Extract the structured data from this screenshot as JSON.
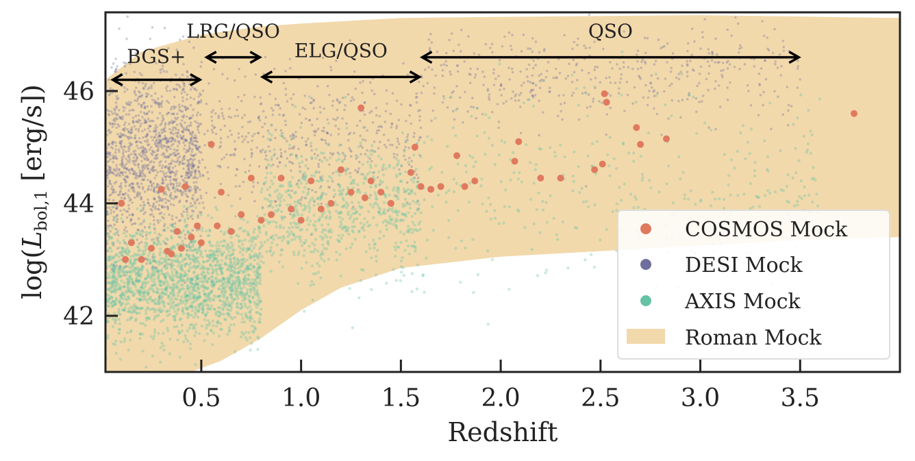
{
  "chart_data": {
    "type": "scatter",
    "xlabel": "Redshift",
    "ylabel": "log(L_bol,1 [erg/s])",
    "ylabel_main": "log(",
    "ylabel_L": "L",
    "ylabel_sub": "bol,1",
    "ylabel_tail": " [erg/s])",
    "xlim": [
      0.02,
      4.0
    ],
    "ylim": [
      41.0,
      47.4
    ],
    "xticks": [
      0.5,
      1.0,
      1.5,
      2.0,
      2.5,
      3.0,
      3.5
    ],
    "xtick_labels": [
      "0.5",
      "1.0",
      "1.5",
      "2.0",
      "2.5",
      "3.0",
      "3.5"
    ],
    "yticks": [
      42,
      44,
      46
    ],
    "ytick_labels": [
      "42",
      "44",
      "46"
    ],
    "grid": false,
    "legend": {
      "position": "lower-right",
      "entries": [
        {
          "label": "COSMOS Mock",
          "color": "#e07a5f",
          "marker": "circle"
        },
        {
          "label": "DESI Mock",
          "color": "#6f6f9e",
          "marker": "circle"
        },
        {
          "label": "AXIS Mock",
          "color": "#66c2a5",
          "marker": "circle"
        },
        {
          "label": "Roman Mock",
          "color": "#f2d9ab",
          "marker": "patch"
        }
      ]
    },
    "survey_ranges": [
      {
        "label": "BGS+",
        "x0": 0.05,
        "x1": 0.5,
        "y": 46.2,
        "label_y": 46.5
      },
      {
        "label": "LRG/QSO",
        "x0": 0.52,
        "x1": 0.8,
        "y": 46.6,
        "label_y": 46.95
      },
      {
        "label": "ELG/QSO",
        "x0": 0.8,
        "x1": 1.6,
        "y": 46.25,
        "label_y": 46.6
      },
      {
        "label": "QSO",
        "x0": 1.6,
        "x1": 3.5,
        "y": 46.6,
        "label_y": 46.95
      }
    ],
    "series": [
      {
        "name": "Roman Mock",
        "kind": "region",
        "color": "#f2d9ab",
        "upper": [
          [
            0.02,
            46.2
          ],
          [
            0.2,
            46.7
          ],
          [
            0.5,
            47.0
          ],
          [
            0.8,
            47.15
          ],
          [
            1.0,
            47.2
          ],
          [
            1.5,
            47.3
          ],
          [
            2.0,
            47.32
          ],
          [
            3.0,
            47.35
          ],
          [
            4.0,
            47.3
          ]
        ],
        "lower": [
          [
            0.02,
            41.0
          ],
          [
            0.45,
            41.0
          ],
          [
            0.6,
            41.2
          ],
          [
            0.8,
            41.6
          ],
          [
            1.0,
            42.1
          ],
          [
            1.2,
            42.5
          ],
          [
            1.5,
            42.85
          ],
          [
            2.0,
            43.05
          ],
          [
            2.5,
            43.15
          ],
          [
            3.0,
            43.25
          ],
          [
            3.5,
            43.35
          ],
          [
            4.0,
            43.4
          ]
        ]
      },
      {
        "name": "DESI Mock",
        "color": "#6f6f9e",
        "population_centers": [
          {
            "x_range": [
              0.02,
              0.5
            ],
            "y_mean": 44.8,
            "y_spread": 0.8,
            "n": 1400
          },
          {
            "x_range": [
              0.5,
              1.6
            ],
            "y_mean": 45.2,
            "y_spread": 0.6,
            "n": 500
          },
          {
            "x_range": [
              1.6,
              3.5
            ],
            "y_mean": 46.3,
            "y_spread": 0.45,
            "n": 450
          }
        ]
      },
      {
        "name": "AXIS Mock",
        "color": "#66c2a5",
        "population_centers": [
          {
            "x_range": [
              0.02,
              0.8
            ],
            "y_mean": 42.6,
            "y_spread": 0.5,
            "n": 1800
          },
          {
            "x_range": [
              0.8,
              1.6
            ],
            "y_mean": 43.9,
            "y_spread": 0.6,
            "n": 700
          },
          {
            "x_range": [
              1.6,
              3.6
            ],
            "y_mean": 44.4,
            "y_spread": 0.8,
            "n": 350
          }
        ]
      },
      {
        "name": "COSMOS Mock",
        "color": "#e07a5f",
        "x": [
          0.1,
          0.12,
          0.15,
          0.2,
          0.25,
          0.3,
          0.33,
          0.35,
          0.38,
          0.4,
          0.42,
          0.45,
          0.48,
          0.5,
          0.55,
          0.58,
          0.6,
          0.65,
          0.7,
          0.75,
          0.8,
          0.85,
          0.9,
          0.95,
          1.0,
          1.05,
          1.1,
          1.15,
          1.2,
          1.25,
          1.3,
          1.32,
          1.35,
          1.4,
          1.45,
          1.55,
          1.57,
          1.6,
          1.65,
          1.7,
          1.78,
          1.82,
          1.87,
          2.07,
          2.09,
          2.2,
          2.3,
          2.47,
          2.51,
          2.52,
          2.53,
          2.68,
          2.7,
          2.83,
          3.77
        ],
        "y": [
          44.0,
          43.0,
          43.3,
          43.0,
          43.2,
          44.25,
          43.15,
          43.1,
          43.5,
          43.2,
          44.3,
          43.4,
          43.6,
          43.3,
          45.05,
          43.6,
          44.2,
          43.5,
          43.8,
          44.45,
          43.7,
          43.8,
          44.45,
          43.9,
          43.7,
          44.4,
          43.9,
          44.0,
          44.6,
          44.2,
          45.7,
          44.1,
          44.4,
          44.2,
          44.0,
          44.55,
          45.0,
          44.3,
          44.25,
          44.3,
          44.85,
          44.3,
          44.4,
          44.75,
          45.1,
          44.45,
          44.45,
          44.6,
          44.7,
          45.95,
          45.8,
          45.35,
          45.05,
          45.15,
          45.6
        ]
      }
    ]
  }
}
